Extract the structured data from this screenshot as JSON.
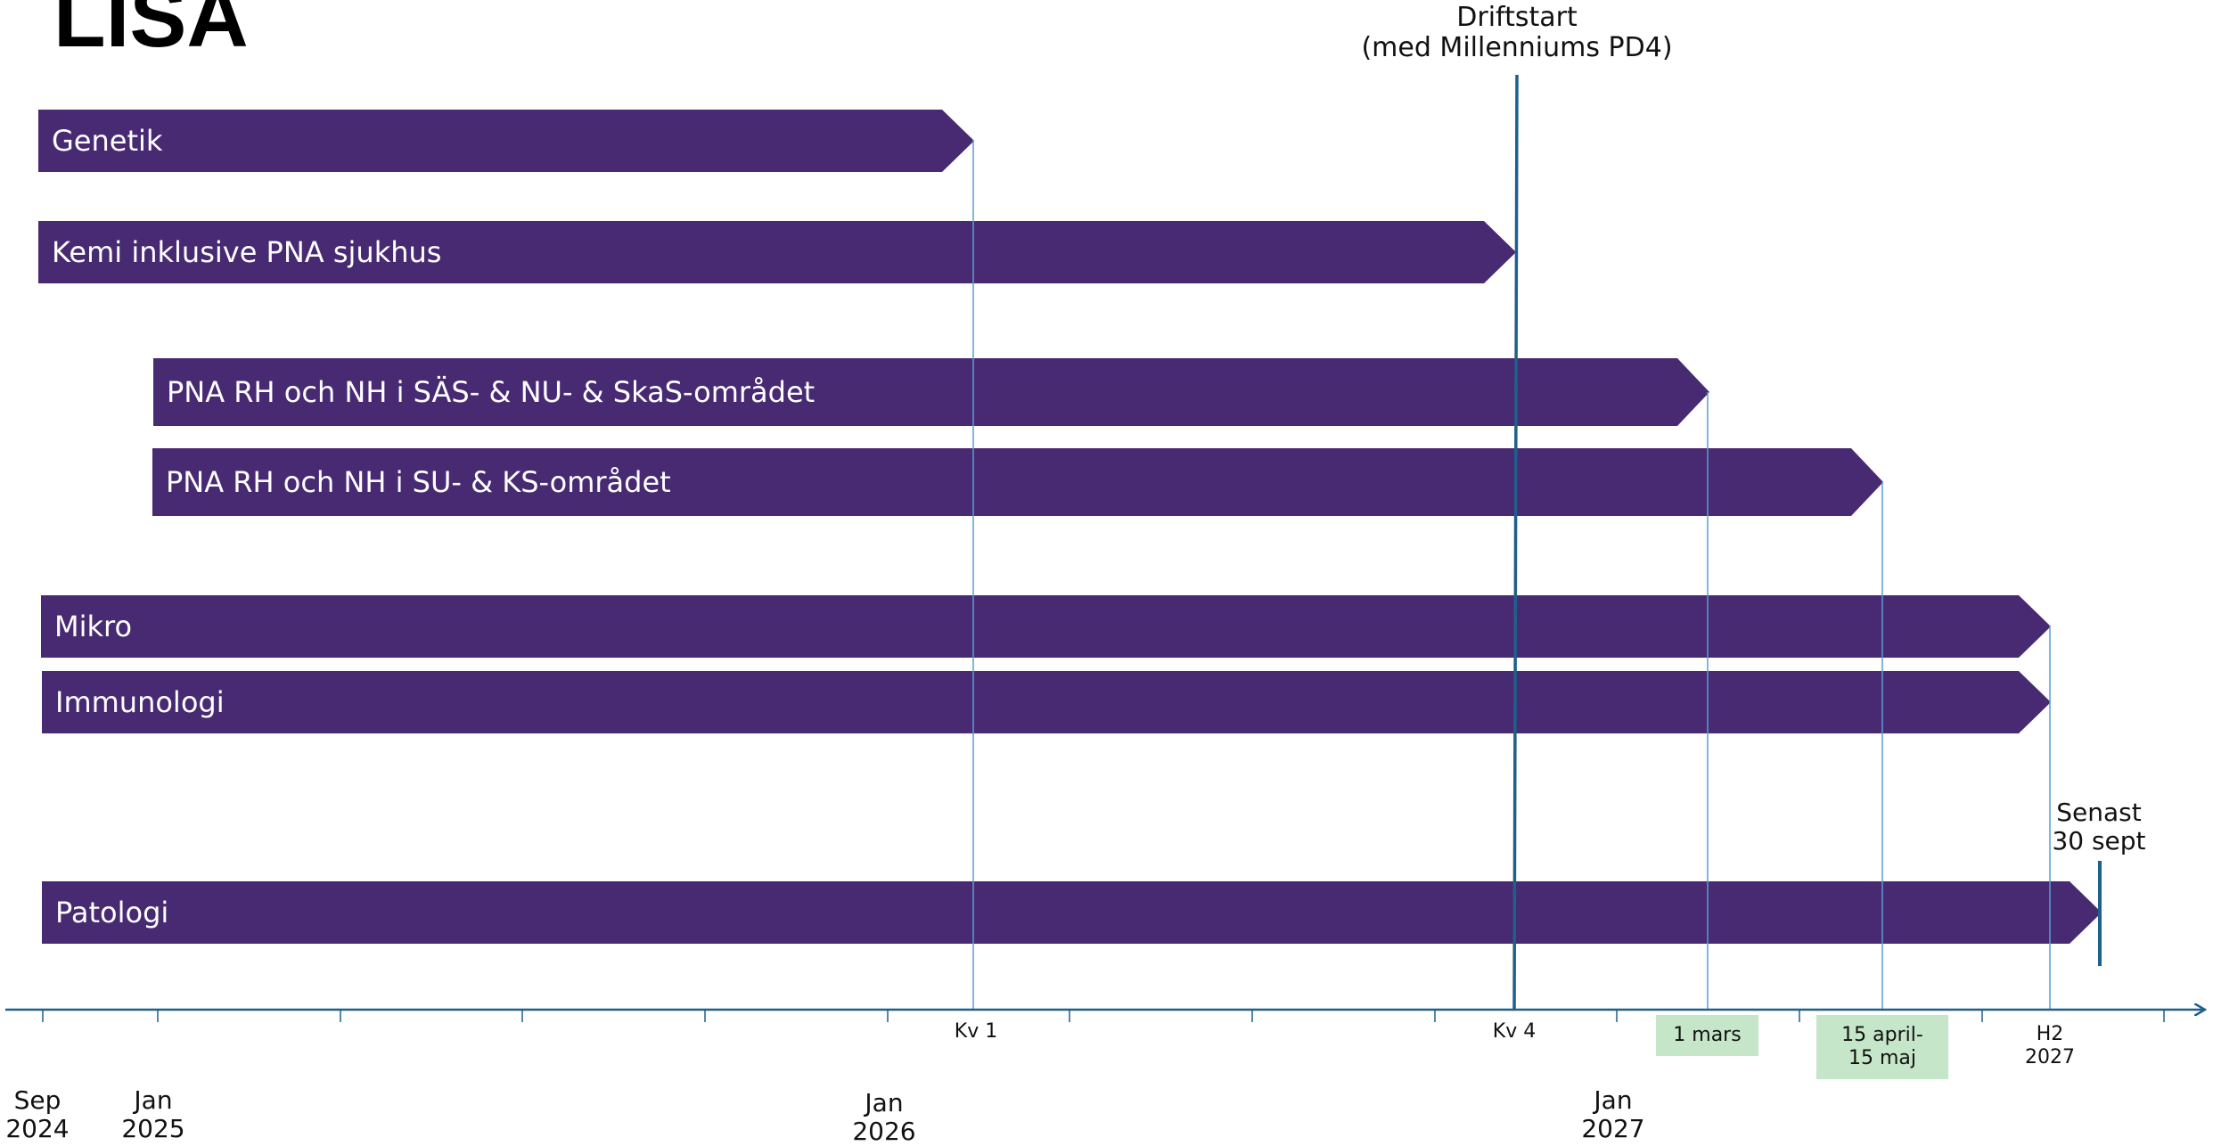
{
  "title": "LISA",
  "driftstart_label": [
    "Driftstart",
    "(med Millenniums PD4)"
  ],
  "senast_label": [
    "Senast",
    "30 sept"
  ],
  "bars": [
    {
      "label": "Genetik"
    },
    {
      "label": "Kemi inklusive PNA sjukhus"
    },
    {
      "label": "PNA RH och NH i SÄS- & NU- & SkaS-området"
    },
    {
      "label": "PNA RH och NH i SU- & KS-området"
    },
    {
      "label": "Mikro"
    },
    {
      "label": "Immunologi"
    },
    {
      "label": "Patologi"
    }
  ],
  "axis": {
    "ticks": [
      "Kv 1",
      "Kv 4",
      "H2\n2027"
    ],
    "dates": [
      "Sep\n2024",
      "Jan\n2025",
      "Jan\n2026",
      "Jan\n2027"
    ],
    "badges": [
      "1 mars",
      "15 april-\n15 maj"
    ]
  },
  "colors": {
    "bar": "#472a72",
    "axis": "#1f5f8b",
    "guide": "#5b9bd5",
    "badge": "#c5e6c8"
  }
}
